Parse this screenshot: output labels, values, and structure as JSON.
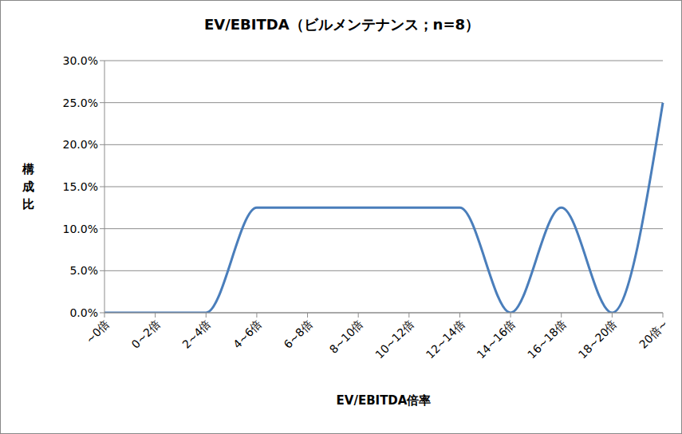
{
  "chart_data": {
    "type": "line",
    "title": "EV/EBITDA（ビルメンテナンス；n=8）",
    "x_label": "EV/EBITDA倍率",
    "y_label": "構成比",
    "categories": [
      "~0倍",
      "0~2倍",
      "2~4倍",
      "4~6倍",
      "6~8倍",
      "8~10倍",
      "10~12倍",
      "12~14倍",
      "14~16倍",
      "16~18倍",
      "18~20倍",
      "20倍~"
    ],
    "values": [
      0,
      0,
      0,
      12.5,
      12.5,
      12.5,
      12.5,
      12.5,
      0,
      12.5,
      0,
      25
    ],
    "color": "#4a7ebb",
    "ylim": [
      0,
      30
    ],
    "yticks": [
      {
        "value": 0,
        "label": "0.0%"
      },
      {
        "value": 5,
        "label": "5.0%"
      },
      {
        "value": 10,
        "label": "10.0%"
      },
      {
        "value": 15,
        "label": "15.0%"
      },
      {
        "value": 20,
        "label": "20.0%"
      },
      {
        "value": 25,
        "label": "25.0%"
      },
      {
        "value": 30,
        "label": "30.0%"
      }
    ],
    "grid": true
  }
}
